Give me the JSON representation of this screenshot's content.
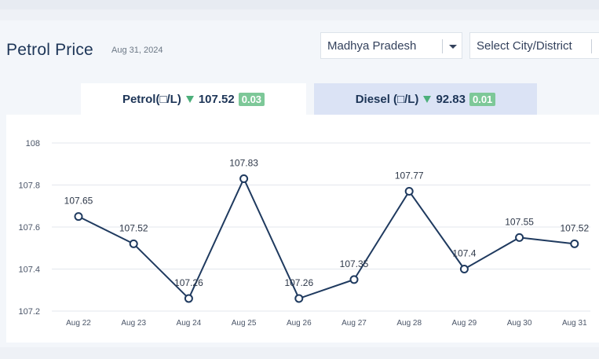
{
  "header": {
    "title": "Petrol Price",
    "date": "Aug 31, 2024"
  },
  "filters": {
    "state": "Madhya Pradesh",
    "city": "Select City/District"
  },
  "tabs": [
    {
      "label": "Petrol(□/L)",
      "price": "107.52",
      "change": "0.03",
      "active": true
    },
    {
      "label": "Diesel (□/L)",
      "price": "92.83",
      "change": "0.01",
      "active": false
    }
  ],
  "colors": {
    "line": "#1f3a5f",
    "down_arrow": "#4caf7a",
    "badge": "#7dc898"
  },
  "chart_data": {
    "type": "line",
    "categories": [
      "Aug 22",
      "Aug 23",
      "Aug 24",
      "Aug 25",
      "Aug 26",
      "Aug 27",
      "Aug 28",
      "Aug 29",
      "Aug 30",
      "Aug 31"
    ],
    "values": [
      107.65,
      107.52,
      107.26,
      107.83,
      107.26,
      107.35,
      107.77,
      107.4,
      107.55,
      107.52
    ],
    "data_labels": [
      "107.65",
      "107.52",
      "107.26",
      "107.83",
      "107.26",
      "107.35",
      "107.77",
      "107.4",
      "107.55",
      "107.52"
    ],
    "yticks": [
      "108",
      "107.8",
      "107.6",
      "107.4",
      "107.2"
    ],
    "ylim": [
      107.2,
      108
    ],
    "grid": true
  }
}
